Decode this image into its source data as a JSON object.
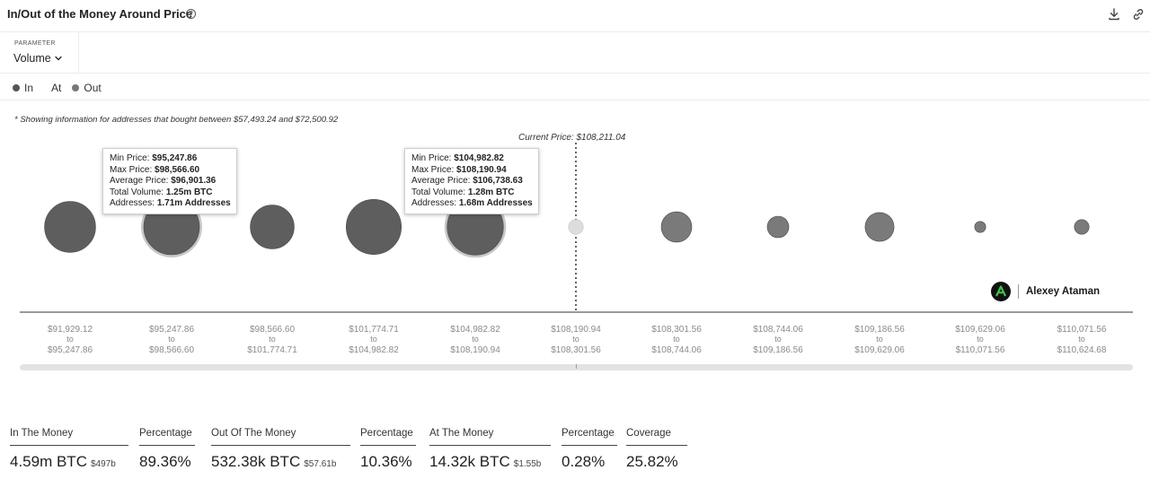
{
  "header": {
    "title": "In/Out of the Money Around Price",
    "help_glyph": "?",
    "icons": [
      "help-icon",
      "download-icon",
      "link-icon"
    ]
  },
  "parameter": {
    "label": "PARAMETER",
    "value": "Volume"
  },
  "legend": [
    {
      "label": "In",
      "color": "#555555"
    },
    {
      "label": "At",
      "color": "#cccccc"
    },
    {
      "label": "Out",
      "color": "#777777"
    }
  ],
  "note": "* Showing information for addresses that bought between $57,493.24 and $72,500.92",
  "chart_data": {
    "type": "scatter",
    "title": "",
    "xlabel": "",
    "ylabel": "",
    "current_price_label": "Current Price: $108,211.04",
    "current_price_index": 5,
    "categories": [
      {
        "from": "$91,929.12",
        "to": "$95,247.86"
      },
      {
        "from": "$95,247.86",
        "to": "$98,566.60"
      },
      {
        "from": "$98,566.60",
        "to": "$101,774.71"
      },
      {
        "from": "$101,774.71",
        "to": "$104,982.82"
      },
      {
        "from": "$104,982.82",
        "to": "$108,190.94"
      },
      {
        "from": "$108,190.94",
        "to": "$108,301.56"
      },
      {
        "from": "$108,301.56",
        "to": "$108,744.06"
      },
      {
        "from": "$108,744.06",
        "to": "$109,186.56"
      },
      {
        "from": "$109,186.56",
        "to": "$109,629.06"
      },
      {
        "from": "$109,629.06",
        "to": "$110,071.56"
      },
      {
        "from": "$110,071.56",
        "to": "$110,624.68"
      }
    ],
    "range_connector": "to",
    "bubbles": [
      {
        "state": "In",
        "relative_volume": 0.84
      },
      {
        "state": "In",
        "relative_volume": 1.0
      },
      {
        "state": "In",
        "relative_volume": 0.62
      },
      {
        "state": "In",
        "relative_volume": 0.98
      },
      {
        "state": "In",
        "relative_volume": 1.02
      },
      {
        "state": "At",
        "relative_volume": 0.07
      },
      {
        "state": "Out",
        "relative_volume": 0.3
      },
      {
        "state": "Out",
        "relative_volume": 0.15
      },
      {
        "state": "Out",
        "relative_volume": 0.27
      },
      {
        "state": "Out",
        "relative_volume": 0.04
      },
      {
        "state": "Out",
        "relative_volume": 0.07
      }
    ],
    "colors": {
      "In": "#5e5e5e",
      "At": "#dddddd",
      "Out": "#7a7a7a",
      "highlight_ring": "#c8c8c8"
    },
    "tooltips": [
      {
        "index": 1,
        "rows": [
          {
            "label": "Min Price: ",
            "value": "$95,247.86"
          },
          {
            "label": "Max Price: ",
            "value": "$98,566.60"
          },
          {
            "label": "Average Price: ",
            "value": "$96,901.36"
          },
          {
            "label": "Total Volume: ",
            "value": "1.25m BTC"
          },
          {
            "label": "Addresses: ",
            "value": "1.71m Addresses"
          }
        ]
      },
      {
        "index": 4,
        "rows": [
          {
            "label": "Min Price: ",
            "value": "$104,982.82"
          },
          {
            "label": "Max Price: ",
            "value": "$108,190.94"
          },
          {
            "label": "Average Price: ",
            "value": "$106,738.63"
          },
          {
            "label": "Total Volume: ",
            "value": "1.28m BTC"
          },
          {
            "label": "Addresses: ",
            "value": "1.68m Addresses"
          }
        ]
      }
    ]
  },
  "watermark": {
    "name": "Alexey Ataman",
    "logo": "alexey-ataman-logo"
  },
  "stats": [
    {
      "label": "In The Money",
      "value": "4.59m BTC",
      "sub": "$497b"
    },
    {
      "label": "Percentage",
      "value": "89.36%",
      "sub": ""
    },
    {
      "label": "Out Of The Money",
      "value": "532.38k BTC",
      "sub": "$57.61b"
    },
    {
      "label": "Percentage",
      "value": "10.36%",
      "sub": ""
    },
    {
      "label": "At The Money",
      "value": "14.32k BTC",
      "sub": "$1.55b"
    },
    {
      "label": "Percentage",
      "value": "0.28%",
      "sub": ""
    },
    {
      "label": "Coverage",
      "value": "25.82%",
      "sub": ""
    }
  ]
}
